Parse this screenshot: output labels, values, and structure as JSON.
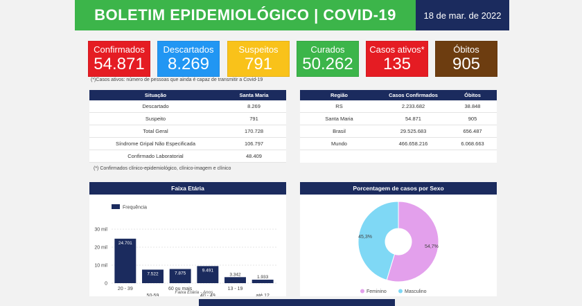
{
  "header": {
    "title": "BOLETIM EPIDEMIOLÓGICO | COVID-19",
    "date": "18 de mar. de 2022"
  },
  "cards": [
    {
      "label": "Confirmados",
      "value": "54.871",
      "color": "#e51c23"
    },
    {
      "label": "Descartados",
      "value": "8.269",
      "color": "#2196f3"
    },
    {
      "label": "Suspeitos",
      "value": "791",
      "color": "#f9c21a"
    },
    {
      "label": "Curados",
      "value": "50.262",
      "color": "#3cb54a"
    },
    {
      "label": "Casos ativos*",
      "value": "135",
      "color": "#e51c23"
    },
    {
      "label": "Óbitos",
      "value": "905",
      "color": "#6d3d10"
    }
  ],
  "note_active": "(*)Casos ativos: número de pessoas que ainda é capaz de transmitir a Covid-19",
  "situacao_table": {
    "headers": [
      "Situação",
      "Santa Maria"
    ],
    "rows": [
      [
        "Descartado",
        "8.269"
      ],
      [
        "Suspeito",
        "791"
      ],
      [
        "Total Geral",
        "170.728"
      ],
      [
        "Síndrome Gripal Não Especificada",
        "106.797"
      ],
      [
        "Confirmado Laboratorial",
        "48.409"
      ]
    ]
  },
  "note_confirmed": "(*) Confirmados clínico-epidemiológico, clínico-imagem e clínico",
  "regiao_table": {
    "headers": [
      "Região",
      "Casos Confirmados",
      "Óbitos"
    ],
    "rows": [
      [
        "RS",
        "2.233.682",
        "38.848"
      ],
      [
        "Santa Maria",
        "54.871",
        "905"
      ],
      [
        "Brasil",
        "29.525.683",
        "656.487"
      ],
      [
        "Mundo",
        "466.658.216",
        "6.068.663"
      ]
    ]
  },
  "age_panel": {
    "title": "Faixa Etária"
  },
  "sex_panel": {
    "title": "Porcentagem de casos por Sexo"
  },
  "chart_data": [
    {
      "type": "bar",
      "title": "Faixa Etária",
      "xlabel": "Faixa Etária - Anos",
      "ylabel": "",
      "legend": [
        "Frequência"
      ],
      "categories": [
        "20 - 39",
        "50-59",
        "60 ou mais",
        "40 - 49",
        "13 - 19",
        "até 12"
      ],
      "values": [
        24701,
        7522,
        7875,
        9491,
        3342,
        1933
      ],
      "value_labels": [
        "24.701",
        "7.522",
        "7.875",
        "9.491",
        "3.342",
        "1.933"
      ],
      "yticks": [
        "0",
        "10 mil",
        "20 mil",
        "30 mil"
      ],
      "ylim": [
        0,
        30000
      ],
      "color": "#1b2b5e"
    },
    {
      "type": "pie",
      "title": "Porcentagem de casos por Sexo",
      "categories": [
        "Feminino",
        "Masculino"
      ],
      "values": [
        54.7,
        45.3
      ],
      "value_labels": [
        "54,7%",
        "45,3%"
      ],
      "colors": [
        "#e3a0ec",
        "#7fd8f5"
      ],
      "legend_position": "bottom"
    }
  ]
}
